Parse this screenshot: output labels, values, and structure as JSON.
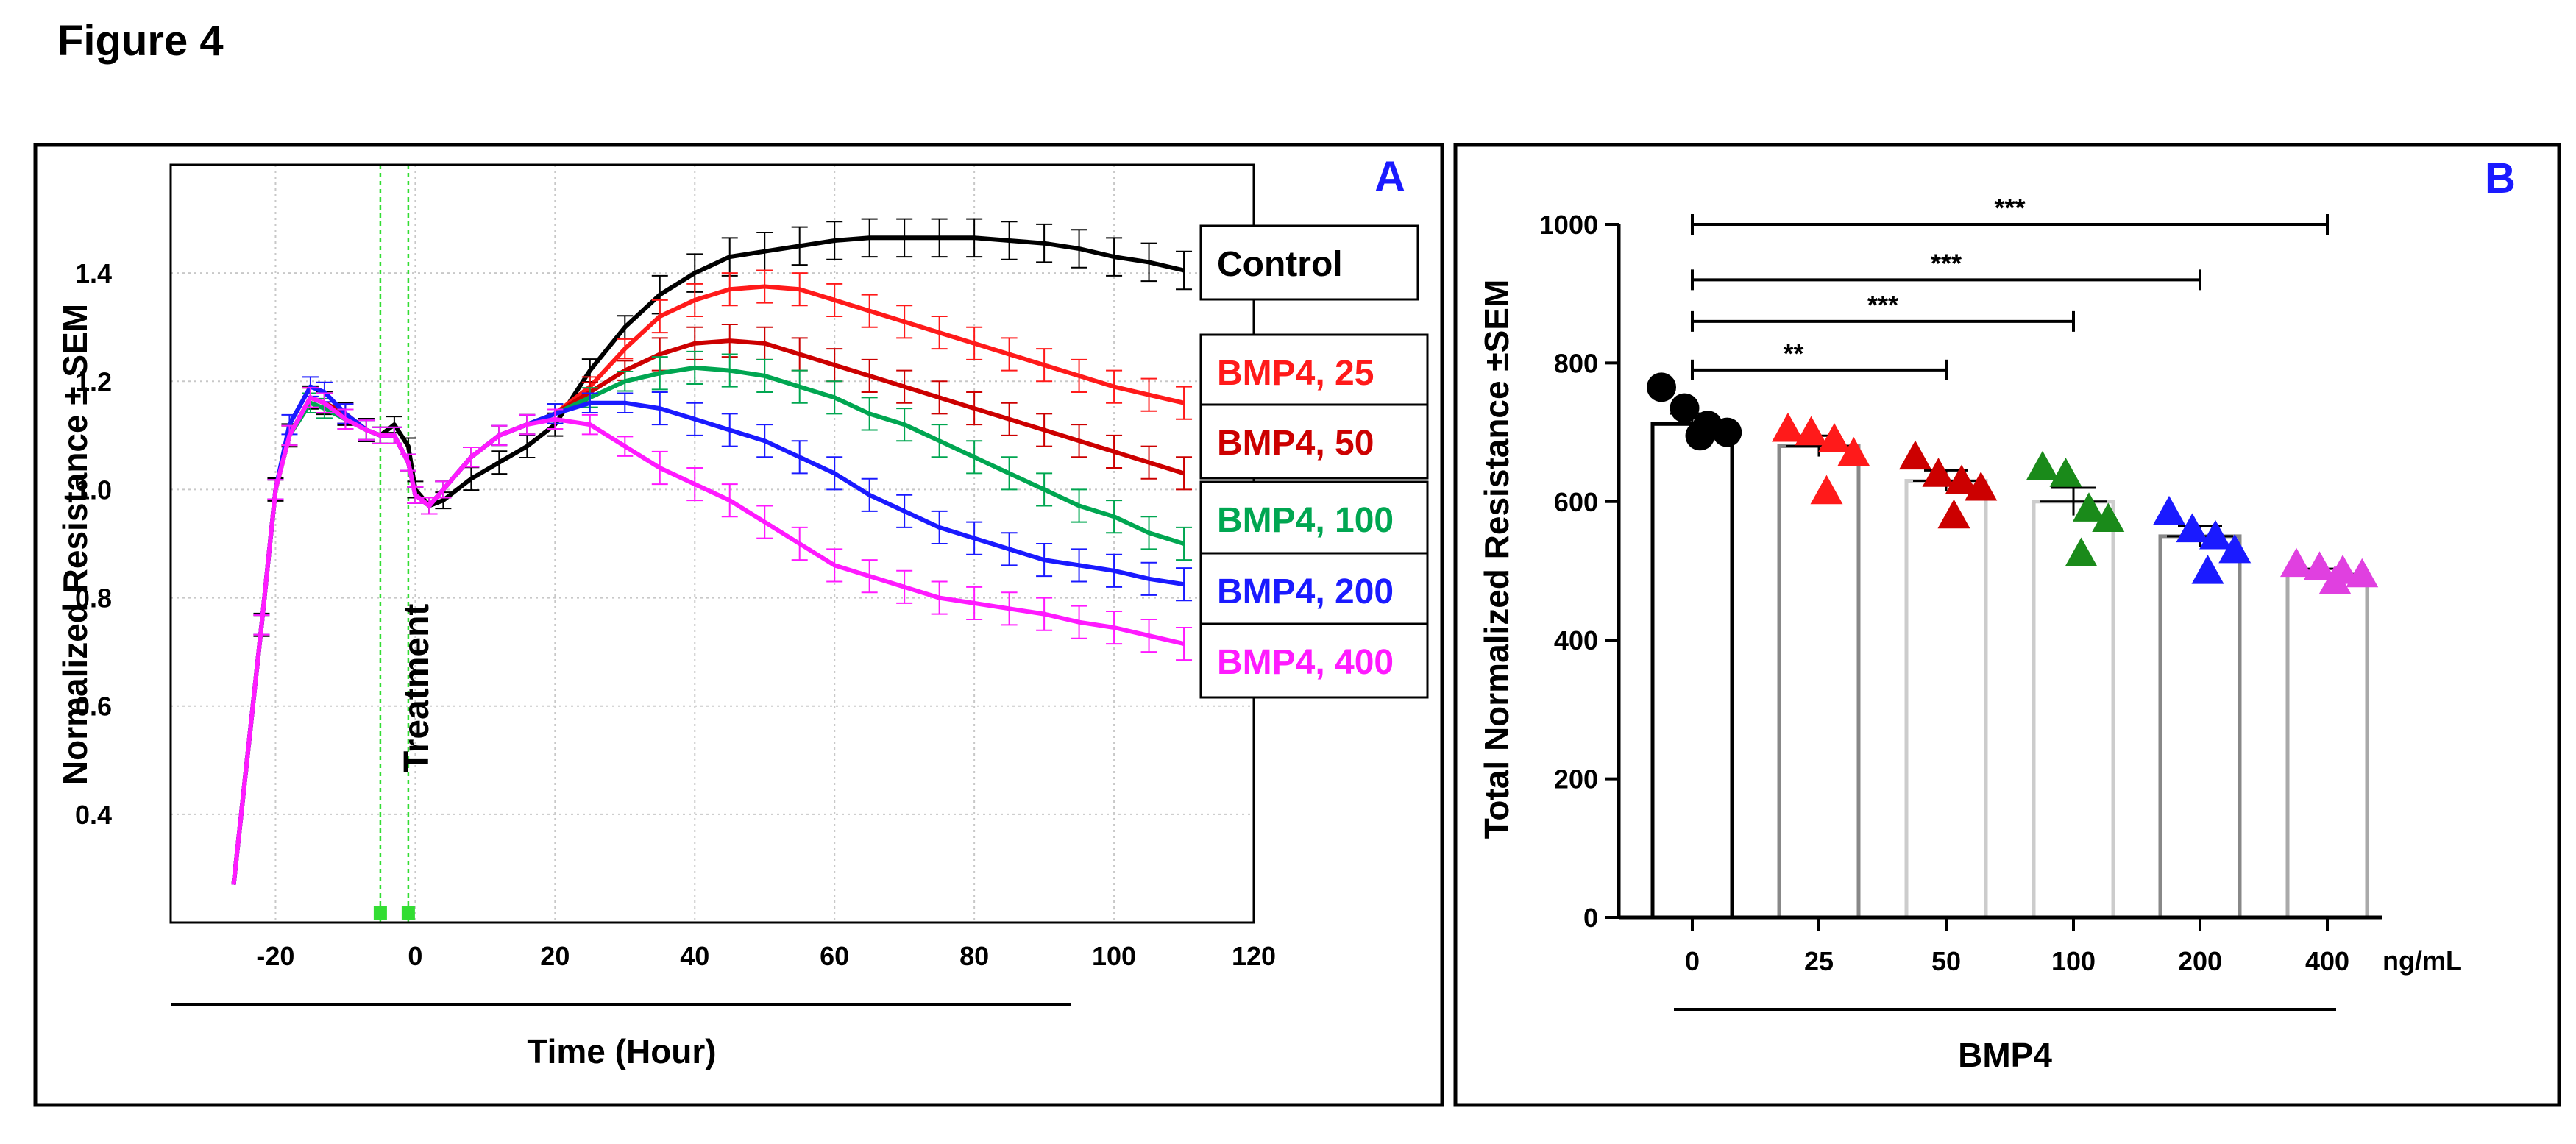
{
  "figure_title": "Figure 4",
  "colors": {
    "control": "#000000",
    "bmp25": "#ff1a1a",
    "bmp50": "#cc0000",
    "bmp100": "#00a651",
    "bmp200": "#1a1aff",
    "bmp400": "#ff1aff",
    "panel_letter": "#1a1aff",
    "treatment_marker": "#33dd33"
  },
  "chart_data": [
    {
      "panel": "A",
      "type": "line",
      "xlabel": "Time (Hour)",
      "ylabel": "Normalized Resistance ± SEM",
      "xlim": [
        -35,
        120
      ],
      "ylim": [
        0.2,
        1.6
      ],
      "xticks": [
        -20,
        0,
        20,
        40,
        60,
        80,
        100,
        120
      ],
      "yticks": [
        0.4,
        0.6,
        0.8,
        1.0,
        1.2,
        1.4
      ],
      "grid": true,
      "annotation": "Treatment",
      "treatment_lines_x": [
        -5,
        -1
      ],
      "legend_position": "right",
      "series": [
        {
          "name": "Control",
          "color": "#000000",
          "x": [
            -26,
            -22,
            -20,
            -18,
            -15,
            -13,
            -10,
            -7,
            -5,
            -3,
            -1,
            0,
            2,
            4,
            8,
            12,
            16,
            20,
            25,
            30,
            35,
            40,
            45,
            50,
            55,
            60,
            65,
            70,
            75,
            80,
            85,
            90,
            95,
            100,
            105,
            110
          ],
          "y": [
            0.27,
            0.75,
            1.0,
            1.1,
            1.17,
            1.16,
            1.14,
            1.11,
            1.1,
            1.12,
            1.08,
            1.0,
            0.97,
            0.98,
            1.02,
            1.05,
            1.08,
            1.12,
            1.22,
            1.3,
            1.36,
            1.4,
            1.43,
            1.44,
            1.45,
            1.46,
            1.465,
            1.465,
            1.465,
            1.465,
            1.46,
            1.455,
            1.445,
            1.43,
            1.42,
            1.405
          ]
        },
        {
          "name": "BMP4, 25",
          "color": "#ff1a1a",
          "x": [
            -26,
            -22,
            -20,
            -18,
            -15,
            -13,
            -10,
            -7,
            -5,
            -3,
            -1,
            0,
            2,
            4,
            8,
            12,
            16,
            20,
            25,
            30,
            35,
            40,
            45,
            50,
            55,
            60,
            65,
            70,
            75,
            80,
            85,
            90,
            95,
            100,
            105,
            110
          ],
          "y": [
            0.27,
            0.75,
            1.0,
            1.1,
            1.17,
            1.16,
            1.14,
            1.11,
            1.1,
            1.1,
            1.05,
            0.99,
            0.97,
            1.0,
            1.06,
            1.1,
            1.12,
            1.14,
            1.19,
            1.26,
            1.32,
            1.35,
            1.37,
            1.375,
            1.37,
            1.35,
            1.33,
            1.31,
            1.29,
            1.27,
            1.25,
            1.23,
            1.21,
            1.19,
            1.175,
            1.16
          ]
        },
        {
          "name": "BMP4, 50",
          "color": "#cc0000",
          "x": [
            -26,
            -22,
            -20,
            -18,
            -15,
            -13,
            -10,
            -7,
            -5,
            -3,
            -1,
            0,
            2,
            4,
            8,
            12,
            16,
            20,
            25,
            30,
            35,
            40,
            45,
            50,
            55,
            60,
            65,
            70,
            75,
            80,
            85,
            90,
            95,
            100,
            105,
            110
          ],
          "y": [
            0.27,
            0.75,
            1.0,
            1.1,
            1.17,
            1.16,
            1.14,
            1.11,
            1.1,
            1.1,
            1.05,
            0.99,
            0.97,
            1.0,
            1.06,
            1.1,
            1.12,
            1.14,
            1.18,
            1.22,
            1.25,
            1.27,
            1.275,
            1.27,
            1.25,
            1.23,
            1.21,
            1.19,
            1.17,
            1.15,
            1.13,
            1.11,
            1.09,
            1.07,
            1.05,
            1.03
          ]
        },
        {
          "name": "BMP4, 100",
          "color": "#00a651",
          "x": [
            -26,
            -22,
            -20,
            -18,
            -15,
            -13,
            -10,
            -7,
            -5,
            -3,
            -1,
            0,
            2,
            4,
            8,
            12,
            16,
            20,
            25,
            30,
            35,
            40,
            45,
            50,
            55,
            60,
            65,
            70,
            75,
            80,
            85,
            90,
            95,
            100,
            105,
            110
          ],
          "y": [
            0.27,
            0.75,
            1.0,
            1.1,
            1.16,
            1.15,
            1.13,
            1.11,
            1.1,
            1.1,
            1.05,
            0.99,
            0.97,
            1.0,
            1.06,
            1.1,
            1.12,
            1.14,
            1.17,
            1.2,
            1.215,
            1.225,
            1.22,
            1.21,
            1.19,
            1.17,
            1.14,
            1.12,
            1.09,
            1.06,
            1.03,
            1.0,
            0.97,
            0.95,
            0.92,
            0.9
          ]
        },
        {
          "name": "BMP4, 200",
          "color": "#1a1aff",
          "x": [
            -26,
            -22,
            -20,
            -18,
            -15,
            -13,
            -10,
            -7,
            -5,
            -3,
            -1,
            0,
            2,
            4,
            8,
            12,
            16,
            20,
            25,
            30,
            35,
            40,
            45,
            50,
            55,
            60,
            65,
            70,
            75,
            80,
            85,
            90,
            95,
            100,
            105,
            110
          ],
          "y": [
            0.27,
            0.75,
            1.0,
            1.12,
            1.19,
            1.18,
            1.14,
            1.11,
            1.1,
            1.1,
            1.05,
            0.99,
            0.97,
            1.0,
            1.06,
            1.1,
            1.12,
            1.14,
            1.16,
            1.16,
            1.15,
            1.13,
            1.11,
            1.09,
            1.06,
            1.03,
            0.99,
            0.96,
            0.93,
            0.91,
            0.89,
            0.87,
            0.86,
            0.85,
            0.835,
            0.825
          ]
        },
        {
          "name": "BMP4, 400",
          "color": "#ff1aff",
          "x": [
            -26,
            -22,
            -20,
            -18,
            -15,
            -13,
            -10,
            -7,
            -5,
            -3,
            -1,
            0,
            2,
            4,
            8,
            12,
            16,
            20,
            25,
            30,
            35,
            40,
            45,
            50,
            55,
            60,
            65,
            70,
            75,
            80,
            85,
            90,
            95,
            100,
            105,
            110
          ],
          "y": [
            0.27,
            0.75,
            1.0,
            1.1,
            1.17,
            1.16,
            1.13,
            1.11,
            1.1,
            1.1,
            1.05,
            0.99,
            0.97,
            1.0,
            1.06,
            1.1,
            1.12,
            1.13,
            1.12,
            1.08,
            1.04,
            1.01,
            0.98,
            0.94,
            0.9,
            0.86,
            0.84,
            0.82,
            0.8,
            0.79,
            0.78,
            0.77,
            0.755,
            0.745,
            0.73,
            0.715
          ]
        }
      ]
    },
    {
      "panel": "B",
      "type": "bar",
      "ylabel": "Total Normalized Resistance ±SEM",
      "xlabel": "BMP4",
      "x_unit": "ng/mL",
      "categories": [
        "0",
        "25",
        "50",
        "100",
        "200",
        "400"
      ],
      "ylim": [
        0,
        1000
      ],
      "yticks": [
        0,
        200,
        400,
        600,
        800,
        1000
      ],
      "bar_colors": [
        "#000000",
        "#888888",
        "#cccccc",
        "#cccccc",
        "#888888",
        "#aaaaaa"
      ],
      "point_colors": [
        "#000000",
        "#ff1a1a",
        "#cc0000",
        "#1a8a1a",
        "#1a1aff",
        "#e040e0"
      ],
      "point_shapes": [
        "circle",
        "triangle",
        "triangle",
        "triangle",
        "triangle",
        "triangle"
      ],
      "values": [
        712,
        680,
        630,
        600,
        550,
        495
      ],
      "sem": [
        15,
        15,
        15,
        20,
        15,
        8
      ],
      "points": [
        [
          765,
          735,
          710,
          700,
          695
        ],
        [
          705,
          700,
          690,
          670,
          615
        ],
        [
          665,
          640,
          630,
          620,
          580
        ],
        [
          650,
          640,
          590,
          575,
          525
        ],
        [
          585,
          560,
          550,
          530,
          500
        ],
        [
          510,
          505,
          500,
          495,
          485
        ]
      ],
      "significance": [
        {
          "from": "0",
          "to": "50",
          "label": "**",
          "y": 790
        },
        {
          "from": "0",
          "to": "100",
          "label": "***",
          "y": 860
        },
        {
          "from": "0",
          "to": "200",
          "label": "***",
          "y": 920
        },
        {
          "from": "0",
          "to": "400",
          "label": "***",
          "y": 1000
        }
      ]
    }
  ]
}
